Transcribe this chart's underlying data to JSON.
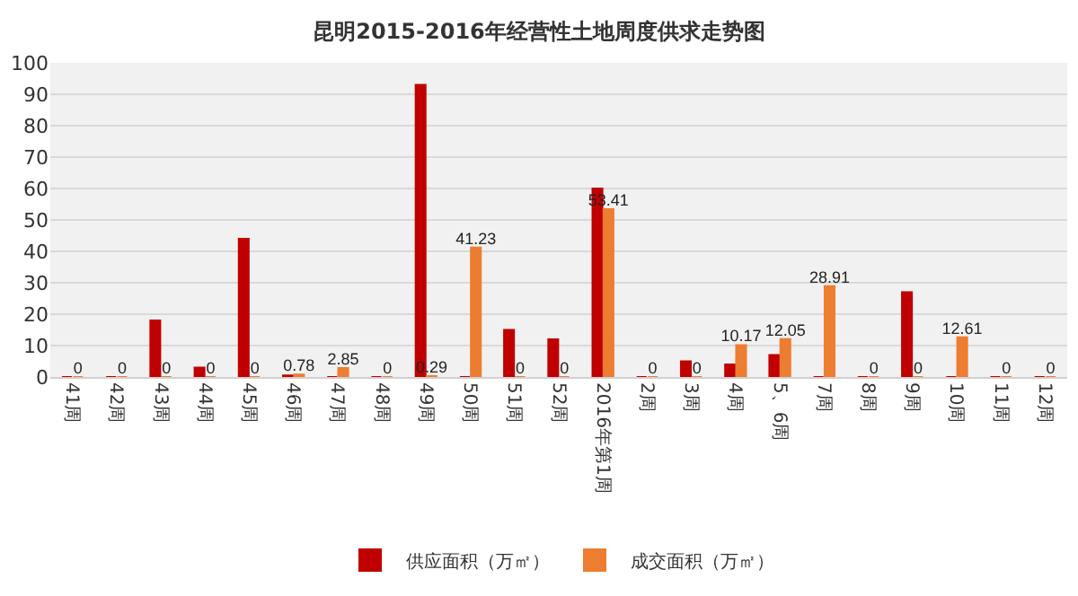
{
  "chart_data": {
    "type": "bar",
    "title": "昆明2015-2016年经营性土地周度供求走势图",
    "categories": [
      "41周",
      "42周",
      "43周",
      "44周",
      "45周",
      "46周",
      "47周",
      "48周",
      "49周",
      "50周",
      "51周",
      "52周",
      "2016年第1周",
      "2周",
      "3周",
      "4周",
      "5、6周",
      "7周",
      "8周",
      "9周",
      "10周",
      "11周",
      "12周"
    ],
    "series": [
      {
        "name": "供应面积（万㎡）",
        "color": "#c00000",
        "values": [
          0,
          0,
          18,
          3,
          44,
          0.5,
          0,
          0,
          93,
          0,
          15,
          12,
          60,
          0,
          5,
          4,
          7,
          0,
          0,
          27,
          0,
          0,
          0
        ]
      },
      {
        "name": "成交面积（万㎡）",
        "color": "#ed7d31",
        "values": [
          0,
          0,
          0,
          0,
          0,
          0.78,
          2.85,
          0,
          0.29,
          41.23,
          0,
          0,
          53.41,
          0,
          0,
          10.17,
          12.05,
          28.91,
          0,
          0,
          12.61,
          0,
          0
        ],
        "value_labels": [
          "0",
          "0",
          "0",
          "0",
          "0",
          "0.78",
          "2.85",
          "0",
          "0.29",
          "41.23",
          "0",
          "0",
          "53.41",
          "0",
          "0",
          "10.17",
          "12.05",
          "28.91",
          "0",
          "0",
          "12.61",
          "0",
          "0"
        ]
      }
    ],
    "ylim": [
      0,
      100
    ],
    "yticks": [
      0,
      10,
      20,
      30,
      40,
      50,
      60,
      70,
      80,
      90,
      100
    ],
    "grid": "y",
    "legend": "bottom"
  }
}
